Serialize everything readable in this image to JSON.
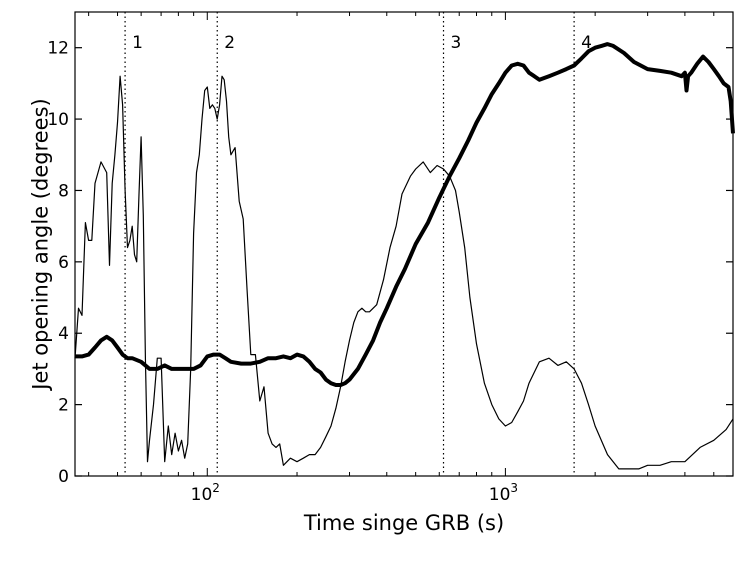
{
  "chart_data": {
    "type": "line",
    "xlabel": "Time singe GRB (s)",
    "ylabel": "Jet opening angle (degrees)",
    "x_scale": "log",
    "xlim": [
      36,
      5800
    ],
    "ylim": [
      0,
      13
    ],
    "y_ticks": [
      "0",
      "2",
      "4",
      "6",
      "8",
      "10",
      "12"
    ],
    "x_ticks": [
      {
        "base": "10",
        "exp": "2",
        "value": 100
      },
      {
        "base": "10",
        "exp": "3",
        "value": 1000
      }
    ],
    "grid": false,
    "vertical_markers": [
      {
        "label": "1",
        "x": 53
      },
      {
        "label": "2",
        "x": 108
      },
      {
        "label": "3",
        "x": 620
      },
      {
        "label": "4",
        "x": 1700
      }
    ],
    "series": [
      {
        "style": "thin",
        "x": [
          36,
          37,
          38,
          39,
          40,
          41,
          42,
          43,
          44,
          46,
          47,
          48,
          49,
          50,
          51,
          52,
          53,
          54,
          55,
          56,
          57,
          58,
          59,
          60,
          61,
          62,
          63,
          64,
          66,
          68,
          70,
          72,
          74,
          76,
          78,
          80,
          82,
          84,
          86,
          88,
          90,
          92,
          94,
          96,
          98,
          100,
          102,
          104,
          106,
          108,
          110,
          112,
          114,
          116,
          118,
          120,
          124,
          128,
          132,
          136,
          140,
          145,
          150,
          155,
          160,
          165,
          170,
          175,
          180,
          190,
          200,
          210,
          220,
          230,
          240,
          250,
          260,
          270,
          280,
          290,
          300,
          310,
          320,
          330,
          340,
          350,
          370,
          390,
          410,
          430,
          450,
          480,
          500,
          530,
          560,
          590,
          620,
          650,
          680,
          700,
          730,
          760,
          800,
          850,
          900,
          950,
          1000,
          1050,
          1100,
          1150,
          1200,
          1300,
          1400,
          1500,
          1600,
          1700,
          1800,
          1900,
          2000,
          2200,
          2400,
          2600,
          2800,
          3000,
          3300,
          3600,
          4000,
          4500,
          5000,
          5500,
          5800
        ],
        "y": [
          3.3,
          4.7,
          4.5,
          7.1,
          6.6,
          6.6,
          8.2,
          8.5,
          8.8,
          8.5,
          5.9,
          8.2,
          9.0,
          9.9,
          11.2,
          10.4,
          8.0,
          6.4,
          6.6,
          7.0,
          6.2,
          6.0,
          7.9,
          9.5,
          7.3,
          3.3,
          0.4,
          1.0,
          2.0,
          3.3,
          3.3,
          0.4,
          1.4,
          0.6,
          1.2,
          0.7,
          1.0,
          0.5,
          0.9,
          3.0,
          6.8,
          8.5,
          9.0,
          10.0,
          10.8,
          10.9,
          10.3,
          10.4,
          10.3,
          10.0,
          10.4,
          11.2,
          11.1,
          10.5,
          9.5,
          9.0,
          9.2,
          7.7,
          7.2,
          5.2,
          3.4,
          3.4,
          2.1,
          2.5,
          1.2,
          0.9,
          0.8,
          0.9,
          0.3,
          0.5,
          0.4,
          0.5,
          0.6,
          0.6,
          0.8,
          1.1,
          1.4,
          1.9,
          2.5,
          3.2,
          3.8,
          4.3,
          4.6,
          4.7,
          4.6,
          4.6,
          4.8,
          5.5,
          6.4,
          7.0,
          7.9,
          8.4,
          8.6,
          8.8,
          8.5,
          8.7,
          8.6,
          8.4,
          8.0,
          7.4,
          6.4,
          5.0,
          3.7,
          2.6,
          2.0,
          1.6,
          1.4,
          1.5,
          1.8,
          2.1,
          2.6,
          3.2,
          3.3,
          3.1,
          3.2,
          3.0,
          2.6,
          2.0,
          1.4,
          0.6,
          0.2,
          0.2,
          0.2,
          0.3,
          0.3,
          0.4,
          0.4,
          0.8,
          1.0,
          1.3,
          1.6
        ]
      },
      {
        "style": "thick",
        "x": [
          36,
          38,
          40,
          42,
          44,
          46,
          48,
          50,
          52,
          54,
          56,
          60,
          64,
          68,
          72,
          76,
          80,
          85,
          90,
          95,
          100,
          105,
          110,
          115,
          120,
          130,
          140,
          150,
          160,
          170,
          180,
          190,
          200,
          210,
          220,
          230,
          240,
          250,
          260,
          270,
          280,
          290,
          300,
          320,
          340,
          360,
          380,
          400,
          430,
          460,
          500,
          550,
          600,
          650,
          700,
          750,
          800,
          850,
          900,
          950,
          1000,
          1050,
          1100,
          1150,
          1200,
          1250,
          1300,
          1400,
          1500,
          1600,
          1700,
          1800,
          1900,
          2000,
          2100,
          2200,
          2300,
          2500,
          2700,
          3000,
          3300,
          3600,
          3900,
          4000,
          4050,
          4100,
          4200,
          4400,
          4600,
          4800,
          5000,
          5200,
          5400,
          5600,
          5700,
          5800
        ],
        "y": [
          3.35,
          3.35,
          3.4,
          3.6,
          3.8,
          3.9,
          3.8,
          3.6,
          3.4,
          3.3,
          3.3,
          3.2,
          3.0,
          3.0,
          3.1,
          3.0,
          3.0,
          3.0,
          3.0,
          3.1,
          3.35,
          3.4,
          3.4,
          3.3,
          3.2,
          3.15,
          3.15,
          3.2,
          3.3,
          3.3,
          3.35,
          3.3,
          3.4,
          3.35,
          3.2,
          3.0,
          2.9,
          2.7,
          2.6,
          2.55,
          2.55,
          2.6,
          2.7,
          3.0,
          3.4,
          3.8,
          4.3,
          4.7,
          5.3,
          5.8,
          6.5,
          7.1,
          7.8,
          8.4,
          8.9,
          9.4,
          9.9,
          10.3,
          10.7,
          11.0,
          11.3,
          11.5,
          11.55,
          11.5,
          11.3,
          11.2,
          11.1,
          11.2,
          11.3,
          11.4,
          11.5,
          11.7,
          11.9,
          12.0,
          12.05,
          12.1,
          12.05,
          11.85,
          11.6,
          11.4,
          11.35,
          11.3,
          11.2,
          11.3,
          10.8,
          11.2,
          11.3,
          11.55,
          11.75,
          11.6,
          11.4,
          11.2,
          11.0,
          10.9,
          10.5,
          9.6
        ]
      }
    ]
  }
}
